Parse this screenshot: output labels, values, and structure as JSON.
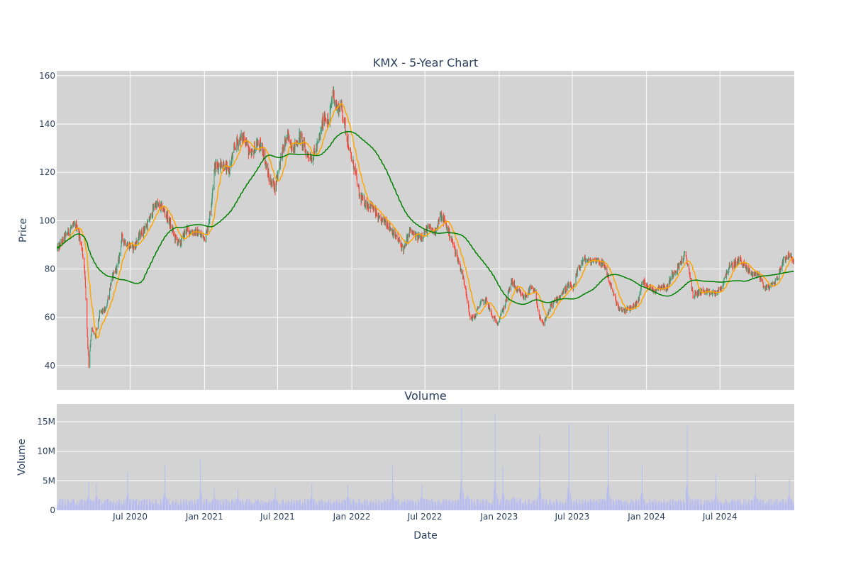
{
  "chart_data": {
    "title": "KMX - 5-Year Chart",
    "price_panel": {
      "type": "candlestick",
      "ylabel": "Price",
      "ylim": [
        30,
        162
      ],
      "yticks": [
        40,
        60,
        80,
        100,
        120,
        140,
        160
      ],
      "grid": true,
      "background": "#d3d3d3",
      "up_color": "#3d9970",
      "down_color": "#ff4136",
      "overlays": [
        {
          "kind": "moving-average-short",
          "color": "#ffa500"
        },
        {
          "kind": "moving-average-long",
          "color": "#008000"
        }
      ],
      "price_anchors": [
        [
          "2020-01-02",
          88
        ],
        [
          "2020-01-20",
          93
        ],
        [
          "2020-02-05",
          97
        ],
        [
          "2020-02-20",
          98
        ],
        [
          "2020-03-02",
          90
        ],
        [
          "2020-03-10",
          80
        ],
        [
          "2020-03-20",
          40
        ],
        [
          "2020-03-27",
          55
        ],
        [
          "2020-04-06",
          52
        ],
        [
          "2020-04-17",
          62
        ],
        [
          "2020-05-01",
          63
        ],
        [
          "2020-05-15",
          75
        ],
        [
          "2020-06-01",
          82
        ],
        [
          "2020-06-10",
          93
        ],
        [
          "2020-06-25",
          90
        ],
        [
          "2020-07-10",
          89
        ],
        [
          "2020-07-25",
          94
        ],
        [
          "2020-08-15",
          99
        ],
        [
          "2020-09-01",
          107
        ],
        [
          "2020-09-20",
          105
        ],
        [
          "2020-10-05",
          100
        ],
        [
          "2020-10-20",
          93
        ],
        [
          "2020-11-01",
          90
        ],
        [
          "2020-11-15",
          96
        ],
        [
          "2020-12-15",
          95
        ],
        [
          "2021-01-04",
          93
        ],
        [
          "2021-01-15",
          103
        ],
        [
          "2021-01-26",
          122
        ],
        [
          "2021-02-15",
          124
        ],
        [
          "2021-03-01",
          120
        ],
        [
          "2021-03-20",
          132
        ],
        [
          "2021-04-10",
          135
        ],
        [
          "2021-04-25",
          126
        ],
        [
          "2021-05-10",
          132
        ],
        [
          "2021-05-25",
          130
        ],
        [
          "2021-06-10",
          117
        ],
        [
          "2021-06-25",
          114
        ],
        [
          "2021-07-10",
          127
        ],
        [
          "2021-07-25",
          135
        ],
        [
          "2021-08-10",
          130
        ],
        [
          "2021-08-25",
          135
        ],
        [
          "2021-09-10",
          128
        ],
        [
          "2021-09-25",
          126
        ],
        [
          "2021-10-10",
          132
        ],
        [
          "2021-10-25",
          144
        ],
        [
          "2021-11-05",
          140
        ],
        [
          "2021-11-15",
          154
        ],
        [
          "2021-11-25",
          146
        ],
        [
          "2021-12-05",
          148
        ],
        [
          "2021-12-20",
          135
        ],
        [
          "2021-12-27",
          128
        ],
        [
          "2022-01-10",
          120
        ],
        [
          "2022-01-20",
          110
        ],
        [
          "2022-02-05",
          107
        ],
        [
          "2022-02-20",
          106
        ],
        [
          "2022-03-10",
          100
        ],
        [
          "2022-03-25",
          100
        ],
        [
          "2022-04-10",
          96
        ],
        [
          "2022-04-25",
          92
        ],
        [
          "2022-05-10",
          88
        ],
        [
          "2022-05-25",
          96
        ],
        [
          "2022-06-10",
          93
        ],
        [
          "2022-06-25",
          94
        ],
        [
          "2022-07-10",
          97
        ],
        [
          "2022-07-25",
          95
        ],
        [
          "2022-08-08",
          102
        ],
        [
          "2022-08-18",
          100
        ],
        [
          "2022-09-05",
          92
        ],
        [
          "2022-09-25",
          82
        ],
        [
          "2022-10-10",
          72
        ],
        [
          "2022-10-20",
          60
        ],
        [
          "2022-11-01",
          60
        ],
        [
          "2022-11-15",
          66
        ],
        [
          "2022-12-01",
          67
        ],
        [
          "2022-12-15",
          60
        ],
        [
          "2022-12-28",
          58
        ],
        [
          "2023-01-15",
          65
        ],
        [
          "2023-02-01",
          75
        ],
        [
          "2023-02-15",
          71
        ],
        [
          "2023-03-05",
          68
        ],
        [
          "2023-03-20",
          72
        ],
        [
          "2023-04-01",
          70
        ],
        [
          "2023-04-10",
          60
        ],
        [
          "2023-04-20",
          57
        ],
        [
          "2023-05-10",
          65
        ],
        [
          "2023-06-01",
          69
        ],
        [
          "2023-06-20",
          73
        ],
        [
          "2023-07-05",
          72
        ],
        [
          "2023-07-15",
          80
        ],
        [
          "2023-07-30",
          84
        ],
        [
          "2023-08-15",
          83
        ],
        [
          "2023-09-01",
          84
        ],
        [
          "2023-09-20",
          81
        ],
        [
          "2023-10-10",
          70
        ],
        [
          "2023-10-25",
          63
        ],
        [
          "2023-11-10",
          63
        ],
        [
          "2023-11-25",
          64
        ],
        [
          "2023-12-10",
          66
        ],
        [
          "2023-12-22",
          75
        ],
        [
          "2024-01-05",
          73
        ],
        [
          "2024-01-20",
          71
        ],
        [
          "2024-02-05",
          73
        ],
        [
          "2024-02-20",
          72
        ],
        [
          "2024-03-05",
          78
        ],
        [
          "2024-03-20",
          81
        ],
        [
          "2024-04-05",
          86
        ],
        [
          "2024-04-15",
          80
        ],
        [
          "2024-04-25",
          69
        ],
        [
          "2024-05-15",
          71
        ],
        [
          "2024-06-01",
          70
        ],
        [
          "2024-06-20",
          70
        ],
        [
          "2024-07-05",
          72
        ],
        [
          "2024-07-20",
          80
        ],
        [
          "2024-08-05",
          82
        ],
        [
          "2024-08-20",
          84
        ],
        [
          "2024-09-05",
          80
        ],
        [
          "2024-09-20",
          78
        ],
        [
          "2024-10-05",
          78
        ],
        [
          "2024-10-20",
          72
        ],
        [
          "2024-11-05",
          73
        ],
        [
          "2024-11-20",
          76
        ],
        [
          "2024-12-05",
          84
        ],
        [
          "2024-12-20",
          86
        ],
        [
          "2024-12-31",
          82
        ]
      ]
    },
    "volume_panel": {
      "type": "bar",
      "title": "Volume",
      "ylabel": "Volume",
      "ylim": [
        0,
        18000000
      ],
      "yticks": [
        0,
        5000000,
        10000000,
        15000000
      ],
      "ytick_labels": [
        "0",
        "5M",
        "10M",
        "15M"
      ],
      "bar_color": "#b8bdf0",
      "base_volume": 1400000,
      "volume_spikes": [
        [
          "2020-03-20",
          4800000
        ],
        [
          "2020-04-08",
          4500000
        ],
        [
          "2020-06-25",
          6500000
        ],
        [
          "2020-09-25",
          7600000
        ],
        [
          "2020-12-22",
          8600000
        ],
        [
          "2021-01-25",
          3800000
        ],
        [
          "2021-03-25",
          3600000
        ],
        [
          "2021-06-25",
          4000000
        ],
        [
          "2021-09-24",
          4500000
        ],
        [
          "2021-12-22",
          4200000
        ],
        [
          "2022-04-12",
          7800000
        ],
        [
          "2022-06-24",
          4300000
        ],
        [
          "2022-09-30",
          17200000
        ],
        [
          "2022-10-15",
          5600000
        ],
        [
          "2022-12-22",
          16300000
        ],
        [
          "2023-01-10",
          7400000
        ],
        [
          "2023-02-05",
          4500000
        ],
        [
          "2023-04-11",
          12800000
        ],
        [
          "2023-06-23",
          14600000
        ],
        [
          "2023-09-28",
          14200000
        ],
        [
          "2023-12-21",
          7600000
        ],
        [
          "2024-04-11",
          14300000
        ],
        [
          "2024-06-21",
          6000000
        ],
        [
          "2024-09-27",
          6200000
        ],
        [
          "2024-12-20",
          5300000
        ]
      ]
    },
    "xlabel": "Date",
    "xlim": [
      "2020-01-01",
      "2025-01-01"
    ],
    "xticks": [
      {
        "date": "2020-07-01",
        "label": "Jul 2020"
      },
      {
        "date": "2021-01-01",
        "label": "Jan 2021"
      },
      {
        "date": "2021-07-01",
        "label": "Jul 2021"
      },
      {
        "date": "2022-01-01",
        "label": "Jan 2022"
      },
      {
        "date": "2022-07-01",
        "label": "Jul 2022"
      },
      {
        "date": "2023-01-01",
        "label": "Jan 2023"
      },
      {
        "date": "2023-07-01",
        "label": "Jul 2023"
      },
      {
        "date": "2024-01-01",
        "label": "Jan 2024"
      },
      {
        "date": "2024-07-01",
        "label": "Jul 2024"
      }
    ]
  }
}
